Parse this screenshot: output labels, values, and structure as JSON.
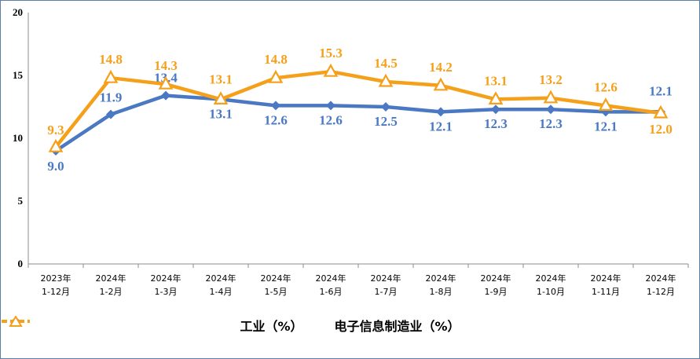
{
  "chart_data": {
    "type": "line",
    "categories": [
      [
        "2023年",
        "1-12月"
      ],
      [
        "2024年",
        "1-2月"
      ],
      [
        "2024年",
        "1-3月"
      ],
      [
        "2024年",
        "1-4月"
      ],
      [
        "2024年",
        "1-5月"
      ],
      [
        "2024年",
        "1-6月"
      ],
      [
        "2024年",
        "1-7月"
      ],
      [
        "2024年",
        "1-8月"
      ],
      [
        "2024年",
        "1-9月"
      ],
      [
        "2024年",
        "1-10月"
      ],
      [
        "2024年",
        "1-11月"
      ],
      [
        "2024年",
        "1-12月"
      ]
    ],
    "y_ticks": [
      "0",
      "5",
      "10",
      "15",
      "20"
    ],
    "ylim": [
      0,
      20
    ],
    "series": [
      {
        "name": "工业（%）",
        "color": "#4a78c2",
        "marker": "diamond",
        "values": [
          9.0,
          11.9,
          13.4,
          13.1,
          12.6,
          12.6,
          12.5,
          12.1,
          12.3,
          12.3,
          12.1,
          12.1
        ],
        "labels": [
          "9.0",
          "11.9",
          "13.4",
          "13.1",
          "12.6",
          "12.6",
          "12.5",
          "12.1",
          "12.3",
          "12.3",
          "12.1",
          "12.1"
        ]
      },
      {
        "name": "电子信息制造业（%）",
        "color": "#f5a01a",
        "marker": "triangle",
        "values": [
          9.3,
          14.8,
          14.3,
          13.1,
          14.8,
          15.3,
          14.5,
          14.2,
          13.1,
          13.2,
          12.6,
          12.0
        ],
        "labels": [
          "9.3",
          "14.8",
          "14.3",
          "13.1",
          "14.8",
          "15.3",
          "14.5",
          "14.2",
          "13.1",
          "13.2",
          "12.6",
          "12.0"
        ]
      }
    ],
    "grid": false,
    "legend_position": "bottom"
  }
}
